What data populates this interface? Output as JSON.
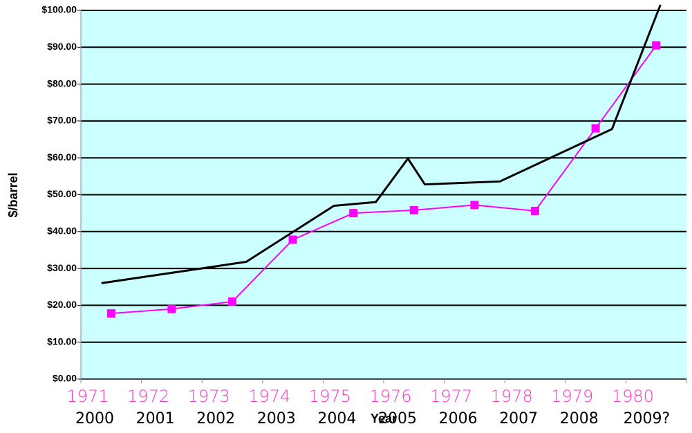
{
  "chart_data": {
    "type": "line",
    "y_label": "$/barrel",
    "x_label": "Year",
    "categories": [
      "1971",
      "1972",
      "1973",
      "1974",
      "1975",
      "1976",
      "1977",
      "1978",
      "1979",
      "1980"
    ],
    "series": [
      {
        "color": "#ff00ff",
        "marker": "square",
        "values": [
          17.8,
          19,
          21,
          37.8,
          45,
          45.8,
          47.2,
          45.6,
          68,
          90.5
        ]
      },
      {
        "color": "#000000",
        "axis": "x2",
        "x": [
          2000.34,
          2002.73,
          2004.18,
          2004.87,
          2005.4,
          2005.68,
          2006.92,
          2008.77,
          2009.57
        ],
        "values": [
          26,
          31.8,
          47,
          48,
          59.8,
          52.8,
          53.6,
          67.8,
          101.5
        ]
      }
    ],
    "x2lim": [
      2000,
      2010
    ],
    "x2ticks": [
      2000,
      2001,
      2002,
      2003,
      2004,
      2005,
      2006,
      2007,
      2008,
      {
        "value": 2009,
        "label": "2009?"
      }
    ],
    "ylim": [
      0,
      100
    ],
    "yticks": [
      {
        "value": 0,
        "label": "$0.00"
      },
      {
        "value": 10,
        "label": "$10.00"
      },
      {
        "value": 20,
        "label": "$20.00"
      },
      {
        "value": 30,
        "label": "$30.00"
      },
      {
        "value": 40,
        "label": "$40.00"
      },
      {
        "value": 50,
        "label": "$50.00"
      },
      {
        "value": 60,
        "label": "$60.00"
      },
      {
        "value": 70,
        "label": "$70.00"
      },
      {
        "value": 80,
        "label": "$80.00"
      },
      {
        "value": 90,
        "label": "$90.00"
      },
      {
        "value": 100,
        "label": "$100.00"
      }
    ],
    "grid": true,
    "plot_background": "#ccffff"
  }
}
